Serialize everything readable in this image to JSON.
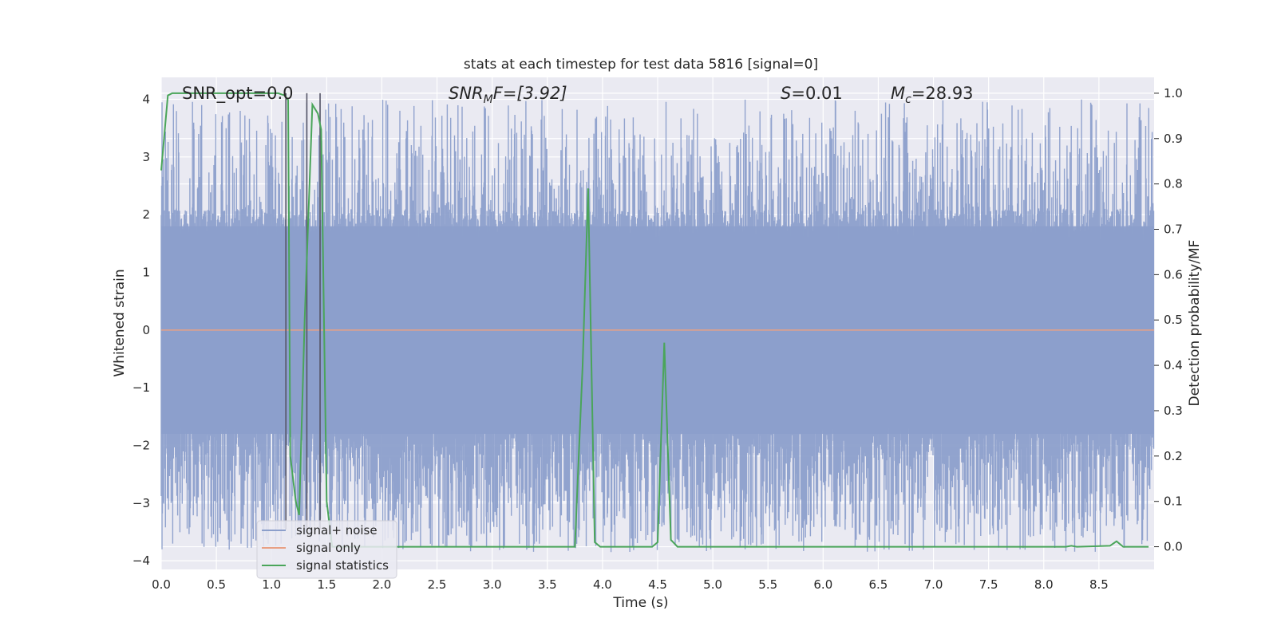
{
  "chart_data": {
    "type": "line",
    "title": "stats at each timestep for test data 5816 [signal=0]",
    "xlabel": "Time (s)",
    "ylabel_left": "Whitened strain",
    "ylabel_right": "Detection probability/MF",
    "xlim": [
      0.0,
      9.0
    ],
    "ylim_left": [
      -4.15,
      4.38
    ],
    "ylim_right": [
      -0.05,
      1.035
    ],
    "x_ticks": [
      0.0,
      0.5,
      1.0,
      1.5,
      2.0,
      2.5,
      3.0,
      3.5,
      4.0,
      4.5,
      5.0,
      5.5,
      6.0,
      6.5,
      7.0,
      7.5,
      8.0,
      8.5
    ],
    "x_tick_labels": [
      "0.0",
      "0.5",
      "1.0",
      "1.5",
      "2.0",
      "2.5",
      "3.0",
      "3.5",
      "4.0",
      "4.5",
      "5.0",
      "5.5",
      "6.0",
      "6.5",
      "7.0",
      "7.5",
      "8.0",
      "8.5"
    ],
    "y_left_ticks": [
      4,
      3,
      2,
      1,
      0,
      -1,
      -2,
      -3,
      -4
    ],
    "y_left_tick_labels": [
      "4",
      "3",
      "2",
      "1",
      "0",
      "−1",
      "−2",
      "−3",
      "−4"
    ],
    "y_right_ticks": [
      1.0,
      0.9,
      0.8,
      0.7,
      0.6,
      0.5,
      0.4,
      0.3,
      0.2,
      0.1,
      0.0
    ],
    "y_right_tick_labels": [
      "1.0",
      "0.9",
      "0.8",
      "0.7",
      "0.6",
      "0.5",
      "0.4",
      "0.3",
      "0.2",
      "0.1",
      "0.0"
    ],
    "grid": true,
    "legend_position": "lower-left",
    "legend": [
      {
        "label": "signal+ noise",
        "color": "#8c9fcb"
      },
      {
        "label": "signal only",
        "color": "#e8a084"
      },
      {
        "label": "signal statistics",
        "color": "#4aa55a"
      }
    ],
    "annotations": {
      "snr_opt": "SNR_opt=0.0",
      "snr_mf_main": "SNR",
      "snr_mf_sub": "M",
      "snr_mf_rest": "F=[3.92]",
      "s_var": "S",
      "s_rest": "=0.01",
      "mc_var": "M",
      "mc_sub": "c",
      "mc_rest": "=28.93"
    },
    "series": [
      {
        "name": "signal+ noise",
        "axis": "left",
        "color": "#8c9fcb",
        "duration_s": 9.0,
        "band": [
          -1.8,
          1.8
        ],
        "peak_max": 4.0,
        "peak_min": -3.85,
        "style": "dense-noise"
      },
      {
        "name": "signal only",
        "axis": "left",
        "color": "#e8a084",
        "x": [
          0.0,
          9.0
        ],
        "y": [
          0.0,
          0.0
        ]
      },
      {
        "name": "signal statistics",
        "axis": "right",
        "color": "#4aa55a",
        "x": [
          0.0,
          0.06,
          0.1,
          1.06,
          1.12,
          1.15,
          1.17,
          1.22,
          1.25,
          1.3,
          1.37,
          1.42,
          1.45,
          1.5,
          1.55,
          1.6,
          3.75,
          3.82,
          3.87,
          3.93,
          3.98,
          4.03,
          4.45,
          4.5,
          4.56,
          4.62,
          4.68,
          8.2,
          8.25,
          8.3,
          8.6,
          8.66,
          8.72,
          8.95
        ],
        "y": [
          0.83,
          0.995,
          1.0,
          1.0,
          0.995,
          0.985,
          0.2,
          0.1,
          0.07,
          0.5,
          0.975,
          0.955,
          0.92,
          0.1,
          0.0,
          0.0,
          0.0,
          0.4,
          0.79,
          0.01,
          0.0,
          0.0,
          0.0,
          0.01,
          0.45,
          0.015,
          0.0,
          0.0,
          0.002,
          0.0,
          0.002,
          0.012,
          0.0,
          0.0
        ]
      }
    ],
    "vertical_lines_x": [
      1.13,
      1.32,
      1.44
    ]
  }
}
